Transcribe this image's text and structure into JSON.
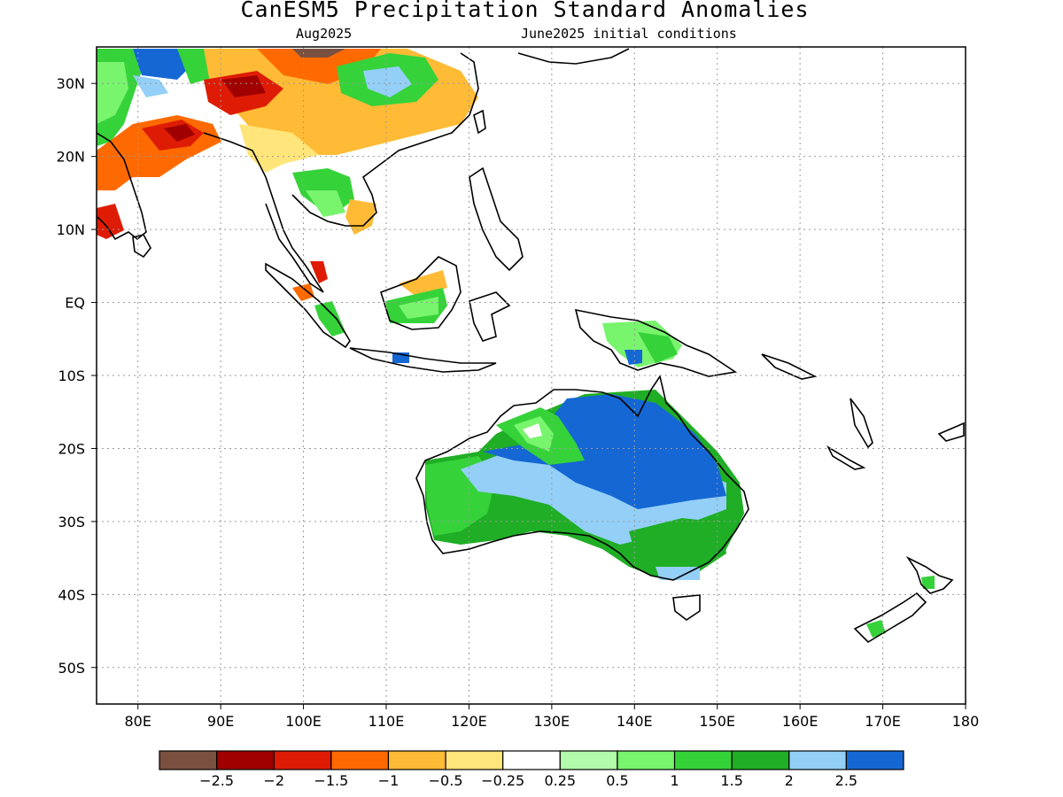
{
  "figure": {
    "title": "CanESM5 Precipitation Standard Anomalies",
    "subtitle_left": "Aug2025",
    "subtitle_right": "June2025 initial conditions"
  },
  "map": {
    "projection": "lat-lon",
    "lon_range": [
      75,
      180
    ],
    "lat_range": [
      -55,
      35
    ],
    "grid": true,
    "lon_ticks": [
      {
        "value": 80,
        "label": "80E"
      },
      {
        "value": 90,
        "label": "90E"
      },
      {
        "value": 100,
        "label": "100E"
      },
      {
        "value": 110,
        "label": "110E"
      },
      {
        "value": 120,
        "label": "120E"
      },
      {
        "value": 130,
        "label": "130E"
      },
      {
        "value": 140,
        "label": "140E"
      },
      {
        "value": 150,
        "label": "150E"
      },
      {
        "value": 160,
        "label": "160E"
      },
      {
        "value": 170,
        "label": "170E"
      },
      {
        "value": 180,
        "label": "180"
      }
    ],
    "lat_ticks": [
      {
        "value": 30,
        "label": "30N"
      },
      {
        "value": 20,
        "label": "20N"
      },
      {
        "value": 10,
        "label": "10N"
      },
      {
        "value": 0,
        "label": "EQ"
      },
      {
        "value": -10,
        "label": "10S"
      },
      {
        "value": -20,
        "label": "20S"
      },
      {
        "value": -30,
        "label": "30S"
      },
      {
        "value": -40,
        "label": "40S"
      },
      {
        "value": -50,
        "label": "50S"
      }
    ]
  },
  "colorbar": {
    "colors": [
      "#7a5040",
      "#a00000",
      "#de1c05",
      "#ff6a00",
      "#ffbb35",
      "#ffe57a",
      "#ffffff",
      "#b2fbaa",
      "#78f46d",
      "#36d23a",
      "#1fae25",
      "#93cff7",
      "#1567d4"
    ],
    "labels": [
      "−2.5",
      "−2",
      "−1.5",
      "−1",
      "−0.5",
      "−0.25",
      "0.25",
      "0.5",
      "1",
      "1.5",
      "2",
      "2.5"
    ]
  }
}
